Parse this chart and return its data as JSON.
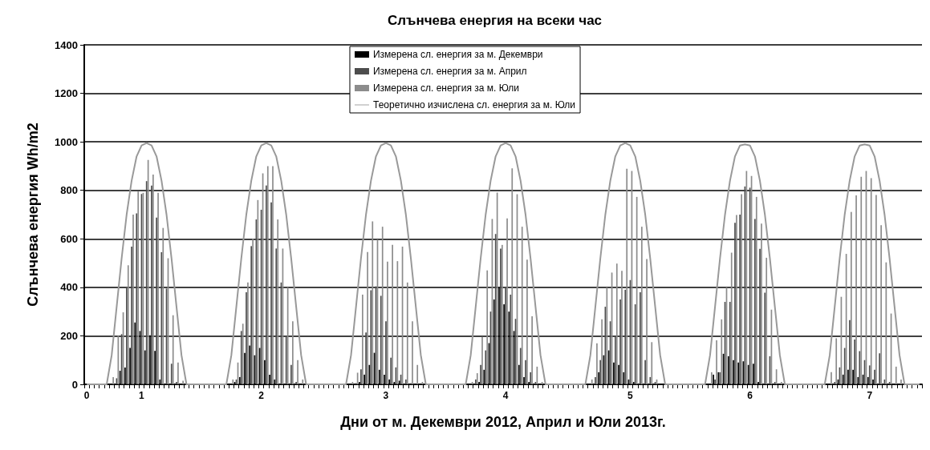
{
  "chart_data": {
    "type": "bar",
    "title": "Слънчева енергия на всеки час",
    "xlabel": "Дни от м. Декември 2012, Април и Юли 2013г.",
    "ylabel": "Слънчева енергия Wh/m2",
    "categories": [
      "0",
      null,
      null,
      null,
      null,
      null,
      null,
      null,
      null,
      null,
      null,
      "1",
      null,
      null,
      null,
      null,
      null,
      null,
      null,
      null,
      null,
      null,
      null,
      null,
      null,
      null,
      null,
      null,
      null,
      null,
      null,
      null,
      null,
      null,
      null,
      "2",
      null,
      null,
      null,
      null,
      null,
      null,
      null,
      null,
      null,
      null,
      null,
      null,
      null,
      null,
      null,
      null,
      null,
      null,
      null,
      null,
      null,
      null,
      null,
      null,
      "3",
      null,
      null,
      null,
      null,
      null,
      null,
      null,
      null,
      null,
      null,
      null,
      null,
      null,
      null,
      null,
      null,
      null,
      null,
      null,
      null,
      null,
      null,
      null,
      "4",
      null,
      null,
      null,
      null,
      null,
      null,
      null,
      null,
      null,
      null,
      null,
      null,
      null,
      null,
      null,
      null,
      null,
      null,
      null,
      null,
      null,
      null,
      null,
      null,
      "5",
      null,
      null,
      null,
      null,
      null,
      null,
      null,
      null,
      null,
      null,
      null,
      null,
      null,
      null,
      null,
      null,
      null,
      null,
      null,
      null,
      null,
      null,
      null,
      "6",
      null,
      null,
      null,
      null,
      null,
      null,
      null,
      null,
      null,
      null,
      null,
      null,
      null,
      null,
      null,
      null,
      null,
      null,
      null,
      null,
      null,
      null,
      null,
      "7",
      null,
      null,
      null,
      null,
      null,
      null,
      null,
      null,
      null,
      null
    ],
    "series": [
      {
        "name": "Измерена сл. енергия за м. Декември",
        "color": "#000000",
        "values": [
          0,
          0,
          0,
          0,
          0,
          0,
          0,
          56,
          69,
          150,
          255,
          220,
          140,
          202,
          138,
          20,
          null,
          0,
          0,
          0,
          0,
          0,
          0,
          0,
          0,
          0,
          0,
          0,
          0,
          0,
          10,
          30,
          130,
          160,
          120,
          150,
          100,
          40,
          20,
          null,
          0,
          0,
          0,
          0,
          0,
          0,
          0,
          0,
          0,
          0,
          0,
          0,
          0,
          0,
          0,
          10,
          40,
          80,
          130,
          60,
          40,
          20,
          10,
          15,
          0,
          0,
          0,
          0,
          0,
          0,
          0,
          0,
          0,
          0,
          0,
          0,
          0,
          0,
          0,
          10,
          60,
          170,
          350,
          400,
          330,
          300,
          220,
          80,
          30,
          10,
          0,
          0,
          0,
          0,
          0,
          0,
          0,
          0,
          0,
          0,
          0,
          0,
          0,
          50,
          120,
          140,
          90,
          80,
          50,
          20,
          10,
          0,
          0,
          0,
          0,
          0,
          0,
          0,
          0,
          0,
          0,
          0,
          0,
          0,
          0,
          0,
          40,
          50,
          126,
          116,
          100,
          90,
          95,
          80,
          85,
          10,
          null,
          0,
          0,
          0,
          0,
          0,
          0,
          0,
          0,
          0,
          0,
          0,
          0,
          0,
          0,
          20,
          40,
          60,
          60,
          30,
          40,
          30,
          20,
          null,
          0,
          0,
          0,
          0,
          0,
          0,
          0,
          0
        ]
      },
      {
        "name": "Измерена сл. енергия за м. Април",
        "color": "#4d4d4d",
        "values": [
          0,
          0,
          0,
          0,
          0,
          0,
          25,
          207,
          403,
          568,
          705,
          785,
          838,
          820,
          688,
          545,
          395,
          85,
          10,
          0,
          0,
          0,
          0,
          0,
          0,
          0,
          0,
          0,
          0,
          0,
          20,
          220,
          380,
          570,
          680,
          720,
          820,
          750,
          560,
          420,
          200,
          80,
          10,
          0,
          0,
          0,
          0,
          0,
          0,
          0,
          0,
          0,
          0,
          0,
          5,
          62,
          214,
          388,
          404,
          365,
          260,
          110,
          70,
          40,
          20,
          5,
          0,
          0,
          0,
          0,
          0,
          0,
          0,
          0,
          0,
          0,
          0,
          0,
          20,
          80,
          140,
          300,
          620,
          560,
          400,
          370,
          270,
          150,
          100,
          50,
          10,
          0,
          0,
          0,
          0,
          0,
          0,
          0,
          0,
          0,
          0,
          0,
          30,
          100,
          320,
          260,
          200,
          350,
          390,
          430,
          330,
          380,
          100,
          30,
          10,
          0,
          0,
          0,
          0,
          0,
          0,
          0,
          0,
          0,
          0,
          0,
          20,
          50,
          340,
          340,
          666,
          700,
          816,
          811,
          682,
          559,
          378,
          116,
          10,
          0,
          0,
          0,
          0,
          0,
          0,
          0,
          0,
          0,
          0,
          0,
          10,
          70,
          150,
          265,
          185,
          137,
          100,
          78,
          60,
          128,
          20,
          10,
          0,
          0,
          0,
          0,
          0,
          0
        ]
      },
      {
        "name": "Измерена сл. енергия за м. Юли",
        "color": "#8c8c8c",
        "values": [
          0,
          0,
          0,
          0,
          0,
          30,
          200,
          297,
          491,
          700,
          795,
          790,
          925,
          865,
          790,
          645,
          520,
          285,
          90,
          15,
          0,
          0,
          0,
          0,
          0,
          0,
          0,
          0,
          0,
          20,
          90,
          250,
          420,
          600,
          760,
          870,
          900,
          900,
          680,
          560,
          400,
          260,
          100,
          20,
          0,
          0,
          0,
          0,
          0,
          0,
          0,
          0,
          0,
          10,
          48,
          370,
          546,
          672,
          597,
          650,
          506,
          575,
          508,
          568,
          420,
          260,
          80,
          10,
          0,
          0,
          0,
          0,
          0,
          0,
          0,
          0,
          0,
          10,
          46,
          196,
          470,
          682,
          791,
          575,
          684,
          891,
          784,
          650,
          514,
          281,
          73,
          10,
          0,
          0,
          0,
          0,
          0,
          0,
          0,
          0,
          0,
          20,
          169,
          268,
          400,
          461,
          498,
          468,
          889,
          880,
          773,
          650,
          517,
          174,
          20,
          0,
          0,
          0,
          0,
          0,
          0,
          0,
          0,
          0,
          0,
          50,
          182,
          268,
          400,
          543,
          698,
          784,
          880,
          859,
          773,
          663,
          522,
          308,
          62,
          10,
          0,
          0,
          0,
          0,
          0,
          0,
          0,
          0,
          0,
          50,
          190,
          361,
          538,
          711,
          779,
          856,
          880,
          850,
          781,
          656,
          503,
          292,
          73,
          20,
          0,
          0,
          0,
          0
        ]
      },
      {
        "name": "Теоретично изчислена сл. енергия за м. Юли",
        "type": "line",
        "color": "#999999",
        "values": [
          0,
          0,
          0,
          0,
          0,
          120,
          320,
          520,
          700,
          840,
          940,
          985,
          995,
          985,
          940,
          840,
          700,
          520,
          320,
          120,
          0,
          0,
          0,
          0,
          0,
          0,
          0,
          0,
          0,
          120,
          320,
          520,
          700,
          840,
          940,
          985,
          995,
          985,
          940,
          840,
          700,
          520,
          320,
          120,
          0,
          0,
          0,
          0,
          0,
          0,
          0,
          0,
          0,
          120,
          320,
          520,
          700,
          840,
          940,
          985,
          995,
          985,
          940,
          840,
          700,
          520,
          320,
          120,
          0,
          0,
          0,
          0,
          0,
          0,
          0,
          0,
          0,
          120,
          320,
          520,
          700,
          840,
          940,
          985,
          995,
          985,
          940,
          840,
          700,
          520,
          320,
          120,
          0,
          0,
          0,
          0,
          0,
          0,
          0,
          0,
          0,
          120,
          320,
          520,
          700,
          840,
          940,
          985,
          995,
          985,
          940,
          840,
          700,
          520,
          320,
          120,
          0,
          0,
          0,
          0,
          0,
          0,
          0,
          0,
          0,
          120,
          320,
          520,
          700,
          840,
          940,
          985,
          990,
          985,
          940,
          840,
          700,
          520,
          320,
          120,
          0,
          0,
          0,
          0,
          0,
          0,
          0,
          0,
          0,
          120,
          320,
          520,
          700,
          840,
          940,
          985,
          990,
          985,
          940,
          840,
          700,
          520,
          320,
          120,
          0,
          0,
          0,
          0
        ]
      }
    ],
    "ylim": [
      0,
      1400
    ],
    "yticks": [
      0,
      200,
      400,
      600,
      800,
      1000,
      1200,
      1400
    ],
    "grid": "y",
    "legend": "top"
  }
}
